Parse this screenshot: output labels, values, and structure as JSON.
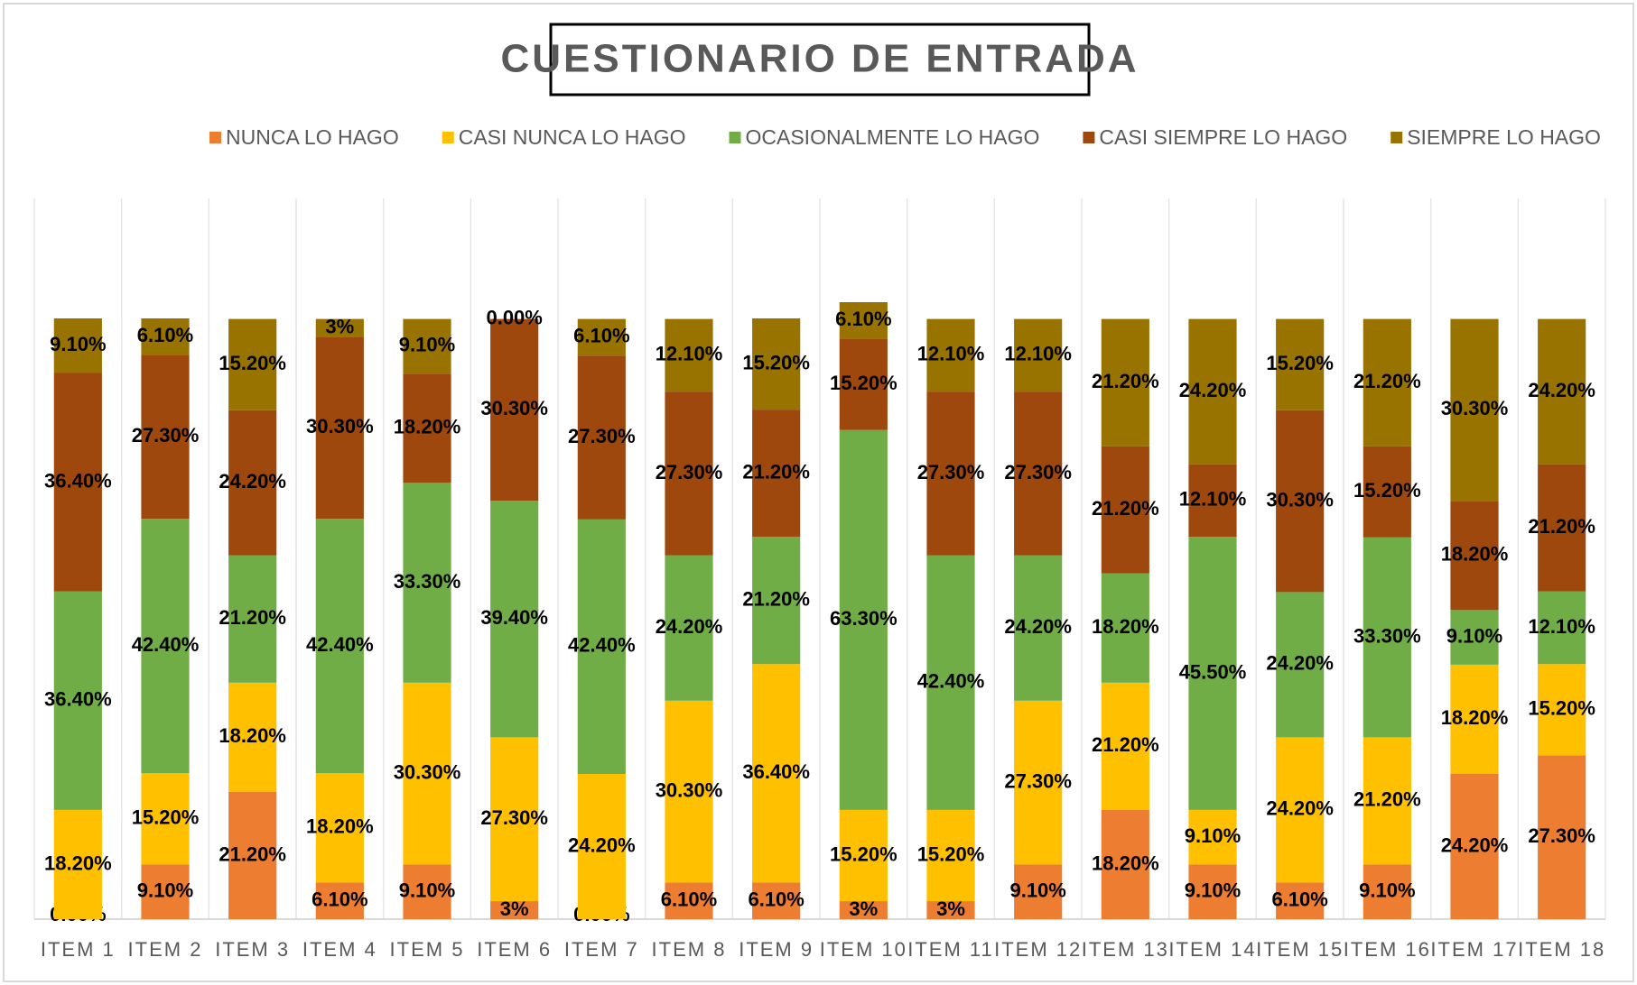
{
  "chart_data": {
    "type": "stacked_bar",
    "title": "CUESTIONARIO  DE ENTRADA",
    "categories": [
      "ITEM 1",
      "ITEM 2",
      "ITEM 3",
      "ITEM 4",
      "ITEM 5",
      "ITEM 6",
      "ITEM 7",
      "ITEM 8",
      "ITEM 9",
      "ITEM 10",
      "ITEM 11",
      "ITEM 12",
      "ITEM 13",
      "ITEM 14",
      "ITEM 15",
      "ITEM 16",
      "ITEM 17",
      "ITEM 18"
    ],
    "legend": "top",
    "series": [
      {
        "name": "NUNCA LO HAGO",
        "color": "#ED7D31",
        "values": [
          0,
          9.1,
          21.2,
          6.1,
          9.1,
          3,
          0,
          6.1,
          6.1,
          3,
          3,
          9.1,
          18.2,
          9.1,
          6.1,
          9.1,
          24.2,
          27.3
        ],
        "value_labels": [
          "0.00%",
          "9.10%",
          "21.20%",
          "6.10%",
          "9.10%",
          "3%",
          "0.00%",
          "6.10%",
          "6.10%",
          "3%",
          "3%",
          "9.10%",
          "18.20%",
          "9.10%",
          "6.10%",
          "9.10%",
          "24.20%",
          "27.30%"
        ]
      },
      {
        "name": "CASI NUNCA LO HAGO",
        "color": "#FFC000",
        "values": [
          18.2,
          15.2,
          18.2,
          18.2,
          30.3,
          27.3,
          24.2,
          30.3,
          36.4,
          15.2,
          15.2,
          27.3,
          21.2,
          9.1,
          24.2,
          21.2,
          18.2,
          15.2
        ],
        "value_labels": [
          "18.20%",
          "15.20%",
          "18.20%",
          "18.20%",
          "30.30%",
          "27.30%",
          "24.20%",
          "30.30%",
          "36.40%",
          "15.20%",
          "15.20%",
          "27.30%",
          "21.20%",
          "9.10%",
          "24.20%",
          "21.20%",
          "18.20%",
          "15.20%"
        ]
      },
      {
        "name": "OCASIONALMENTE LO HAGO",
        "color": "#70AD47",
        "values": [
          36.4,
          42.4,
          21.2,
          42.4,
          33.3,
          39.4,
          42.4,
          24.2,
          21.2,
          63.3,
          42.4,
          24.2,
          18.2,
          45.5,
          24.2,
          33.3,
          9.1,
          12.1
        ],
        "value_labels": [
          "36.40%",
          "42.40%",
          "21.20%",
          "42.40%",
          "33.30%",
          "39.40%",
          "42.40%",
          "24.20%",
          "21.20%",
          "63.30%",
          "42.40%",
          "24.20%",
          "18.20%",
          "45.50%",
          "24.20%",
          "33.30%",
          "9.10%",
          "12.10%"
        ]
      },
      {
        "name": "CASI SIEMPRE LO HAGO",
        "color": "#9E480E",
        "values": [
          36.4,
          27.3,
          24.2,
          30.3,
          18.2,
          30.3,
          27.3,
          27.3,
          21.2,
          15.2,
          27.3,
          27.3,
          21.2,
          12.1,
          30.3,
          15.2,
          18.2,
          21.2
        ],
        "value_labels": [
          "36.40%",
          "27.30%",
          "24.20%",
          "30.30%",
          "18.20%",
          "30.30%",
          "27.30%",
          "27.30%",
          "21.20%",
          "15.20%",
          "27.30%",
          "27.30%",
          "21.20%",
          "12.10%",
          "30.30%",
          "15.20%",
          "18.20%",
          "21.20%"
        ]
      },
      {
        "name": "SIEMPRE LO HAGO",
        "color": "#997300",
        "values": [
          9.1,
          6.1,
          15.2,
          3,
          9.1,
          0,
          6.1,
          12.1,
          15.2,
          6.1,
          12.1,
          12.1,
          21.2,
          24.2,
          15.2,
          21.2,
          30.3,
          24.2
        ],
        "value_labels": [
          "9.10%",
          "6.10%",
          "15.20%",
          "3%",
          "9.10%",
          "0.00%",
          "6.10%",
          "12.10%",
          "15.20%",
          "6.10%",
          "12.10%",
          "12.10%",
          "21.20%",
          "24.20%",
          "15.20%",
          "21.20%",
          "30.30%",
          "24.20%"
        ]
      }
    ]
  }
}
